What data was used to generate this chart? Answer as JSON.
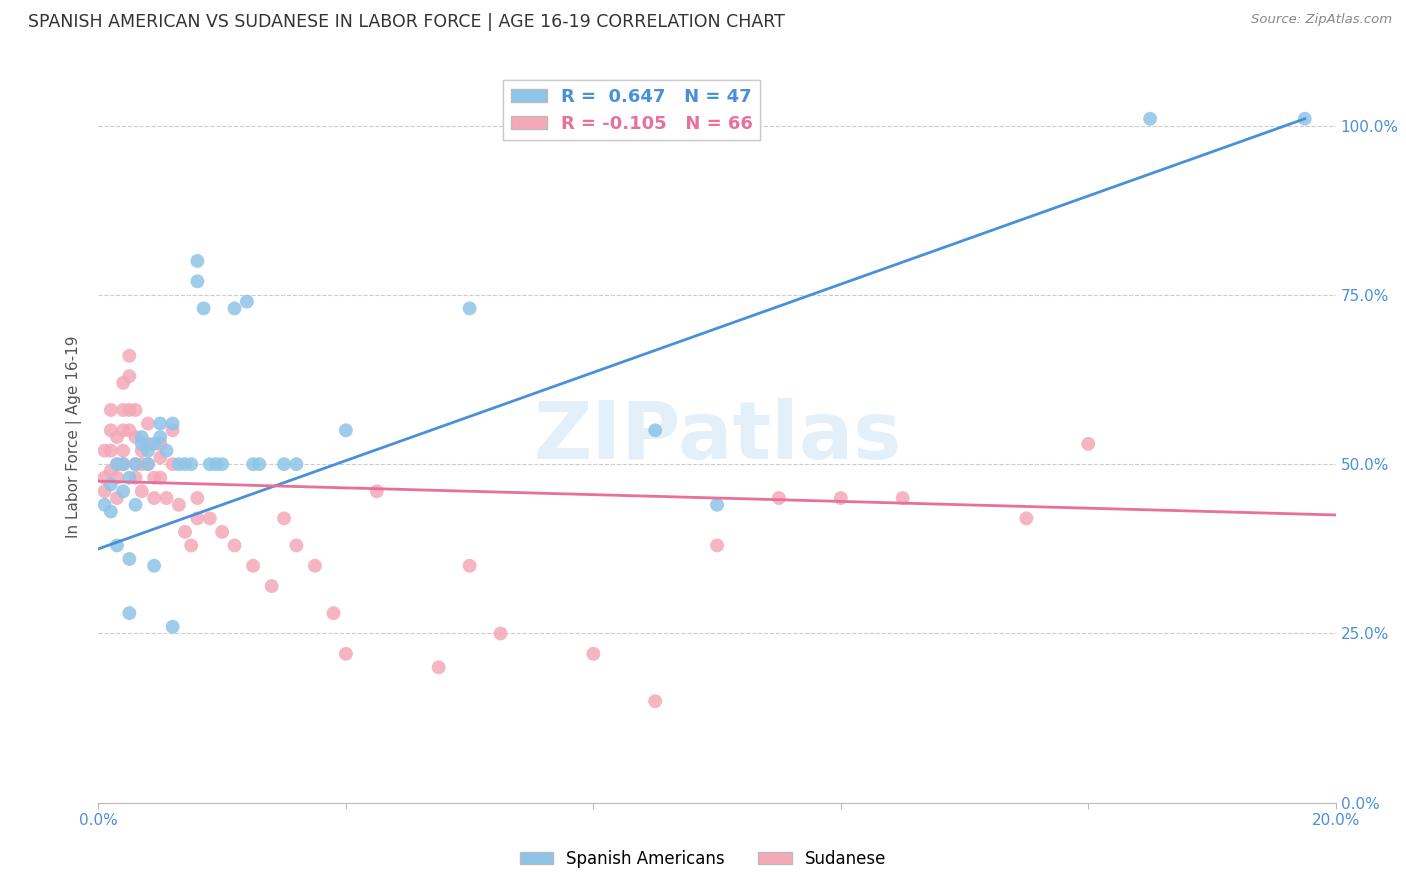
{
  "title": "SPANISH AMERICAN VS SUDANESE IN LABOR FORCE | AGE 16-19 CORRELATION CHART",
  "source": "Source: ZipAtlas.com",
  "ylabel": "In Labor Force | Age 16-19",
  "xlim": [
    0.0,
    0.2
  ],
  "ylim": [
    0.0,
    1.08
  ],
  "yticks": [
    0.0,
    0.25,
    0.5,
    0.75,
    1.0
  ],
  "ytick_labels_right": [
    "0.0%",
    "25.0%",
    "50.0%",
    "75.0%",
    "100.0%"
  ],
  "xticks": [
    0.0,
    0.04,
    0.08,
    0.12,
    0.16,
    0.2
  ],
  "xtick_labels": [
    "0.0%",
    "",
    "",
    "",
    "",
    "20.0%"
  ],
  "blue_R": 0.647,
  "blue_N": 47,
  "pink_R": -0.105,
  "pink_N": 66,
  "blue_color": "#8ec4e8",
  "pink_color": "#f4a8b8",
  "blue_line_color": "#4a90d9",
  "pink_line_color": "#e8709a",
  "watermark": "ZIPatlas",
  "legend_label_blue": "Spanish Americans",
  "legend_label_pink": "Sudanese",
  "blue_line_x0": 0.0,
  "blue_line_y0": 0.375,
  "blue_line_x1": 0.195,
  "blue_line_y1": 1.01,
  "pink_line_x0": 0.0,
  "pink_line_y0": 0.475,
  "pink_line_x1": 0.2,
  "pink_line_y1": 0.425,
  "blue_points_x": [
    0.001,
    0.002,
    0.002,
    0.003,
    0.003,
    0.004,
    0.004,
    0.005,
    0.005,
    0.005,
    0.006,
    0.006,
    0.007,
    0.007,
    0.008,
    0.008,
    0.009,
    0.009,
    0.01,
    0.01,
    0.011,
    0.012,
    0.012,
    0.013,
    0.014,
    0.015,
    0.016,
    0.016,
    0.017,
    0.018,
    0.019,
    0.02,
    0.022,
    0.024,
    0.025,
    0.026,
    0.03,
    0.032,
    0.04,
    0.06,
    0.09,
    0.1,
    0.17,
    0.195
  ],
  "blue_points_y": [
    0.44,
    0.47,
    0.43,
    0.38,
    0.5,
    0.46,
    0.5,
    0.36,
    0.48,
    0.28,
    0.5,
    0.44,
    0.54,
    0.53,
    0.5,
    0.52,
    0.53,
    0.35,
    0.54,
    0.56,
    0.52,
    0.56,
    0.26,
    0.5,
    0.5,
    0.5,
    0.77,
    0.8,
    0.73,
    0.5,
    0.5,
    0.5,
    0.73,
    0.74,
    0.5,
    0.5,
    0.5,
    0.5,
    0.55,
    0.73,
    0.55,
    0.44,
    1.01,
    1.01
  ],
  "pink_points_x": [
    0.001,
    0.001,
    0.001,
    0.002,
    0.002,
    0.002,
    0.002,
    0.003,
    0.003,
    0.003,
    0.003,
    0.004,
    0.004,
    0.004,
    0.004,
    0.004,
    0.005,
    0.005,
    0.005,
    0.005,
    0.006,
    0.006,
    0.006,
    0.006,
    0.007,
    0.007,
    0.007,
    0.008,
    0.008,
    0.008,
    0.009,
    0.009,
    0.01,
    0.01,
    0.01,
    0.011,
    0.012,
    0.012,
    0.013,
    0.014,
    0.015,
    0.016,
    0.016,
    0.018,
    0.02,
    0.022,
    0.025,
    0.028,
    0.03,
    0.032,
    0.035,
    0.038,
    0.04,
    0.045,
    0.055,
    0.06,
    0.065,
    0.08,
    0.09,
    0.1,
    0.11,
    0.12,
    0.13,
    0.15,
    0.16
  ],
  "pink_points_y": [
    0.52,
    0.48,
    0.46,
    0.55,
    0.58,
    0.52,
    0.49,
    0.54,
    0.5,
    0.48,
    0.45,
    0.62,
    0.58,
    0.55,
    0.52,
    0.5,
    0.66,
    0.63,
    0.58,
    0.55,
    0.58,
    0.54,
    0.5,
    0.48,
    0.52,
    0.5,
    0.46,
    0.56,
    0.53,
    0.5,
    0.48,
    0.45,
    0.53,
    0.51,
    0.48,
    0.45,
    0.55,
    0.5,
    0.44,
    0.4,
    0.38,
    0.45,
    0.42,
    0.42,
    0.4,
    0.38,
    0.35,
    0.32,
    0.42,
    0.38,
    0.35,
    0.28,
    0.22,
    0.46,
    0.2,
    0.35,
    0.25,
    0.22,
    0.15,
    0.38,
    0.45,
    0.45,
    0.45,
    0.42,
    0.53
  ]
}
